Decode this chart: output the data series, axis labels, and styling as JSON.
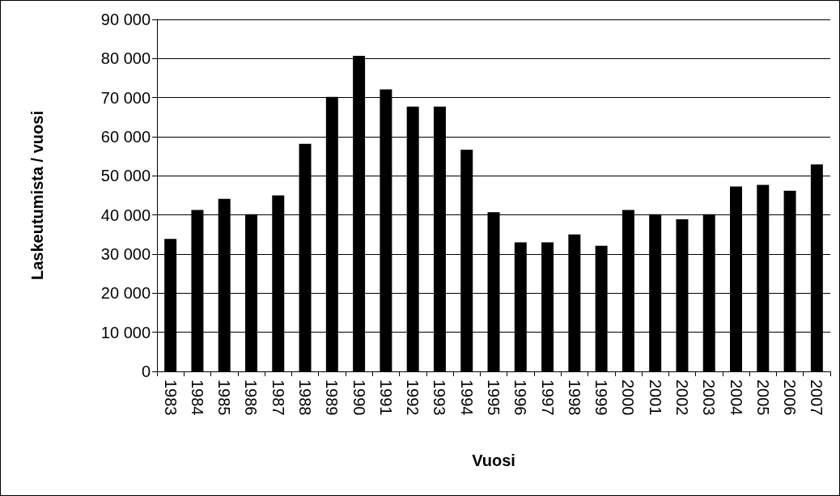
{
  "chart_data": {
    "type": "bar",
    "xlabel": "Vuosi",
    "ylabel": "Laskeutumista / vuosi",
    "categories": [
      "1983",
      "1984",
      "1985",
      "1986",
      "1987",
      "1988",
      "1989",
      "1990",
      "1991",
      "1992",
      "1993",
      "1994",
      "1995",
      "1996",
      "1997",
      "1998",
      "1999",
      "2000",
      "2001",
      "2002",
      "2003",
      "2004",
      "2005",
      "2006",
      "2007"
    ],
    "values": [
      33900,
      41300,
      44100,
      40200,
      45000,
      58200,
      70200,
      80700,
      72100,
      67700,
      67700,
      56700,
      40700,
      33000,
      33000,
      35000,
      32100,
      41300,
      40200,
      38900,
      40200,
      47300,
      47700,
      46200,
      52900
    ],
    "color": "#000000",
    "ylim": [
      0,
      90000
    ],
    "yticks": [
      {
        "value": 0,
        "label": "0"
      },
      {
        "value": 10000,
        "label": "10 000"
      },
      {
        "value": 20000,
        "label": "20 000"
      },
      {
        "value": 30000,
        "label": "30 000"
      },
      {
        "value": 40000,
        "label": "40 000"
      },
      {
        "value": 50000,
        "label": "50 000"
      },
      {
        "value": 60000,
        "label": "60 000"
      },
      {
        "value": 70000,
        "label": "70 000"
      },
      {
        "value": 80000,
        "label": "80 000"
      },
      {
        "value": 90000,
        "label": "90 000"
      }
    ],
    "grid": "y"
  }
}
